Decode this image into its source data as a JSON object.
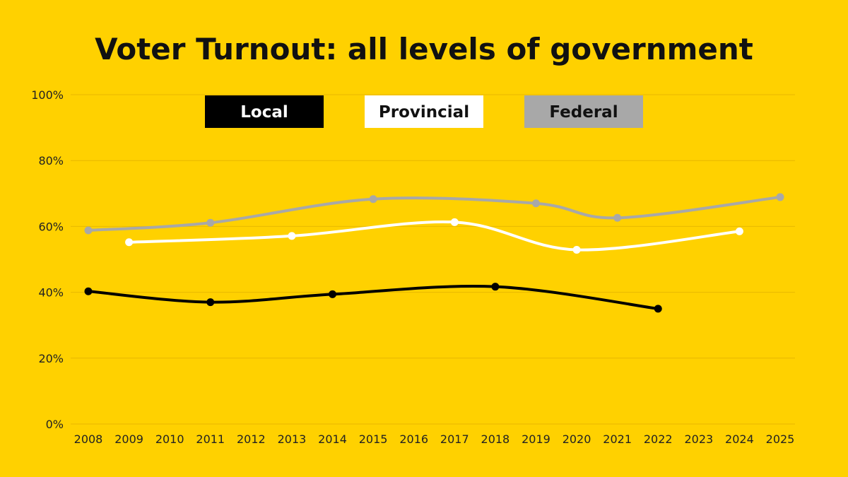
{
  "colors": {
    "background": "#FFD100",
    "gridline": "#E8B800",
    "axis_text": "#222222"
  },
  "chart_data": {
    "type": "line",
    "title": "Voter Turnout: all levels of government",
    "x": [
      "2008",
      "2009",
      "2010",
      "2011",
      "2012",
      "2013",
      "2014",
      "2015",
      "2016",
      "2017",
      "2018",
      "2019",
      "2020",
      "2021",
      "2022",
      "2023",
      "2024",
      "2025"
    ],
    "ylim": [
      0,
      100
    ],
    "y_ticks": [
      "0%",
      "20%",
      "40%",
      "60%",
      "80%",
      "100%"
    ],
    "grid": true,
    "legend_position": "top-center",
    "series": [
      {
        "name": "Local",
        "color": "#000000",
        "legend_text_color": "#FFFFFF",
        "points": [
          {
            "x": "2008",
            "y": 40.3
          },
          {
            "x": "2011",
            "y": 37.0
          },
          {
            "x": "2014",
            "y": 39.4
          },
          {
            "x": "2018",
            "y": 41.7
          },
          {
            "x": "2022",
            "y": 35.0
          }
        ]
      },
      {
        "name": "Provincial",
        "color": "#FFFFFF",
        "legend_text_color": "#111111",
        "points": [
          {
            "x": "2009",
            "y": 55.2
          },
          {
            "x": "2013",
            "y": 57.1
          },
          {
            "x": "2017",
            "y": 61.3
          },
          {
            "x": "2020",
            "y": 52.9
          },
          {
            "x": "2024",
            "y": 58.5
          }
        ]
      },
      {
        "name": "Federal",
        "color": "#A8A8A8",
        "legend_text_color": "#111111",
        "points": [
          {
            "x": "2008",
            "y": 58.8
          },
          {
            "x": "2011",
            "y": 61.1
          },
          {
            "x": "2015",
            "y": 68.3
          },
          {
            "x": "2019",
            "y": 67.0
          },
          {
            "x": "2021",
            "y": 62.6
          },
          {
            "x": "2025",
            "y": 68.9
          }
        ]
      }
    ]
  }
}
